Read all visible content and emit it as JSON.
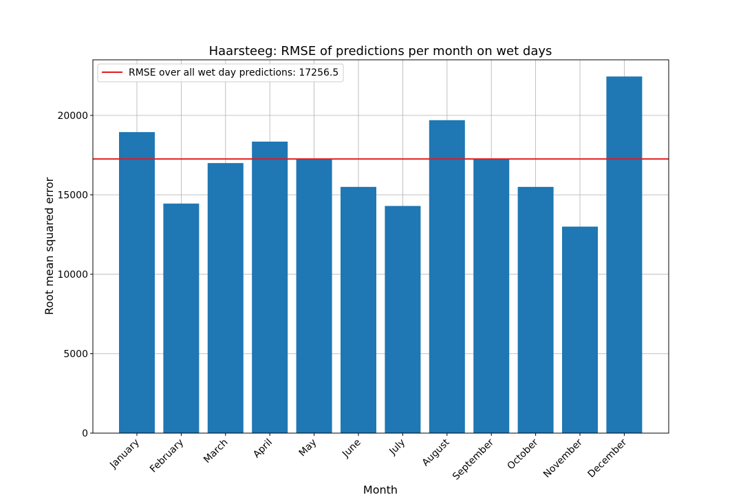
{
  "chart_data": {
    "type": "bar",
    "title": "Haarsteeg: RMSE of predictions per month on wet days",
    "xlabel": "Month",
    "ylabel": "Root mean squared error",
    "categories": [
      "January",
      "February",
      "March",
      "April",
      "May",
      "June",
      "July",
      "August",
      "September",
      "October",
      "November",
      "December"
    ],
    "values": [
      18950,
      14450,
      17000,
      18350,
      17250,
      15500,
      14300,
      19700,
      17250,
      15500,
      13000,
      22450
    ],
    "ylim": [
      0,
      23500
    ],
    "yticks": [
      0,
      5000,
      10000,
      15000,
      20000
    ],
    "ytick_labels": [
      "0",
      "5000",
      "10000",
      "15000",
      "20000"
    ],
    "grid": true,
    "bar_color": "#1f77b4",
    "reference_line": {
      "value": 17256.5,
      "label": "RMSE over all wet day predictions: 17256.5",
      "color": "#e31a1c"
    },
    "legend_position": "upper-left"
  }
}
